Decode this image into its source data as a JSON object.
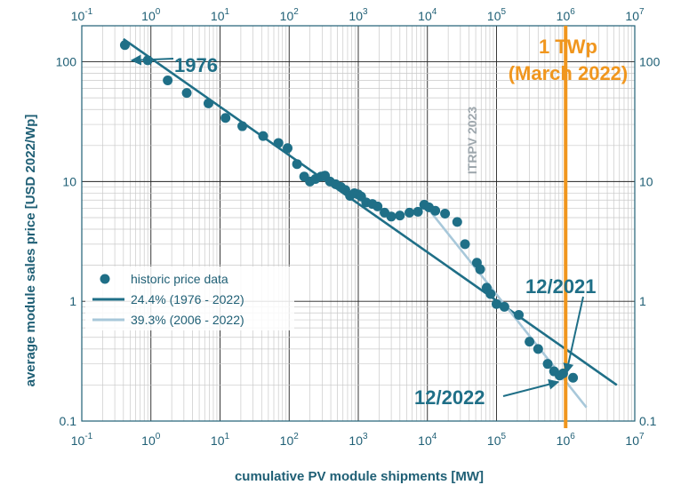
{
  "chart_data": {
    "type": "scatter",
    "xscale": "log",
    "yscale": "log",
    "xlim": [
      0.1,
      10000000
    ],
    "ylim": [
      0.1,
      200
    ],
    "xlabel": "cumulative PV module shipments [MW]",
    "ylabel": "average module sales price [USD 2022/Wp]",
    "grid": true,
    "watermark": "ITRPV 2023",
    "x_ticks": [
      {
        "base": "10",
        "exp": "-1",
        "value": 0.1
      },
      {
        "base": "10",
        "exp": "0",
        "value": 1
      },
      {
        "base": "10",
        "exp": "1",
        "value": 10
      },
      {
        "base": "10",
        "exp": "2",
        "value": 100
      },
      {
        "base": "10",
        "exp": "3",
        "value": 1000
      },
      {
        "base": "10",
        "exp": "4",
        "value": 10000
      },
      {
        "base": "10",
        "exp": "5",
        "value": 100000
      },
      {
        "base": "10",
        "exp": "6",
        "value": 1000000
      },
      {
        "base": "10",
        "exp": "7",
        "value": 10000000
      }
    ],
    "y_ticks": [
      {
        "label": "100",
        "value": 100
      },
      {
        "label": "10",
        "value": 10
      },
      {
        "label": "1",
        "value": 1
      },
      {
        "label": "0.1",
        "value": 0.1
      }
    ],
    "series": [
      {
        "name": "historic price data",
        "kind": "scatter",
        "color": "#1f6f87",
        "points": [
          [
            0.42,
            138
          ],
          [
            0.9,
            103
          ],
          [
            1.75,
            70
          ],
          [
            3.3,
            55
          ],
          [
            6.8,
            45
          ],
          [
            12,
            34
          ],
          [
            21,
            29
          ],
          [
            42,
            24
          ],
          [
            70,
            21
          ],
          [
            95,
            19
          ],
          [
            130,
            14
          ],
          [
            165,
            11
          ],
          [
            200,
            10
          ],
          [
            240,
            10.5
          ],
          [
            290,
            11
          ],
          [
            330,
            11.2
          ],
          [
            390,
            10
          ],
          [
            470,
            9.5
          ],
          [
            560,
            9.0
          ],
          [
            650,
            8.5
          ],
          [
            760,
            7.6
          ],
          [
            880,
            8.0
          ],
          [
            1000,
            7.8
          ],
          [
            1100,
            7.5
          ],
          [
            1300,
            6.7
          ],
          [
            1600,
            6.5
          ],
          [
            1900,
            6.2
          ],
          [
            2400,
            5.5
          ],
          [
            3000,
            5.1
          ],
          [
            4000,
            5.2
          ],
          [
            5500,
            5.5
          ],
          [
            7300,
            5.6
          ],
          [
            9000,
            6.4
          ],
          [
            10500,
            6.1
          ],
          [
            13000,
            5.7
          ],
          [
            18000,
            5.4
          ],
          [
            27000,
            4.6
          ],
          [
            35000,
            3.0
          ],
          [
            52000,
            2.1
          ],
          [
            58000,
            1.85
          ],
          [
            72000,
            1.3
          ],
          [
            82000,
            1.15
          ],
          [
            100000,
            0.95
          ],
          [
            130000,
            0.9
          ],
          [
            210000,
            0.77
          ],
          [
            300000,
            0.46
          ],
          [
            400000,
            0.4
          ],
          [
            550000,
            0.3
          ],
          [
            680000,
            0.26
          ],
          [
            820000,
            0.24
          ],
          [
            920000,
            0.25
          ],
          [
            1280000,
            0.23
          ]
        ]
      },
      {
        "name": "24.4% (1976 - 2022)",
        "kind": "line",
        "color": "#1f6f87",
        "points": [
          [
            0.4,
            155
          ],
          [
            5500000,
            0.2
          ]
        ]
      },
      {
        "name": "39.3% (2006 - 2022)",
        "kind": "line",
        "color": "#a8c8da",
        "points": [
          [
            8500,
            6.8
          ],
          [
            2000000,
            0.13
          ]
        ]
      }
    ],
    "annotations": [
      {
        "id": "1976",
        "text": "1976",
        "color": "#1f6f87"
      },
      {
        "id": "tw-line1",
        "text": "1 TWp",
        "color": "#f0961e"
      },
      {
        "id": "tw-line2",
        "text": "(March 2022)",
        "color": "#f0961e"
      },
      {
        "id": "12-2021",
        "text": "12/2021",
        "color": "#1f6f87"
      },
      {
        "id": "12-2022",
        "text": "12/2022",
        "color": "#1f6f87"
      }
    ],
    "vertical_marker": {
      "x": 1000000,
      "color": "#f0961e"
    },
    "legend": {
      "position": "lower-left"
    }
  }
}
